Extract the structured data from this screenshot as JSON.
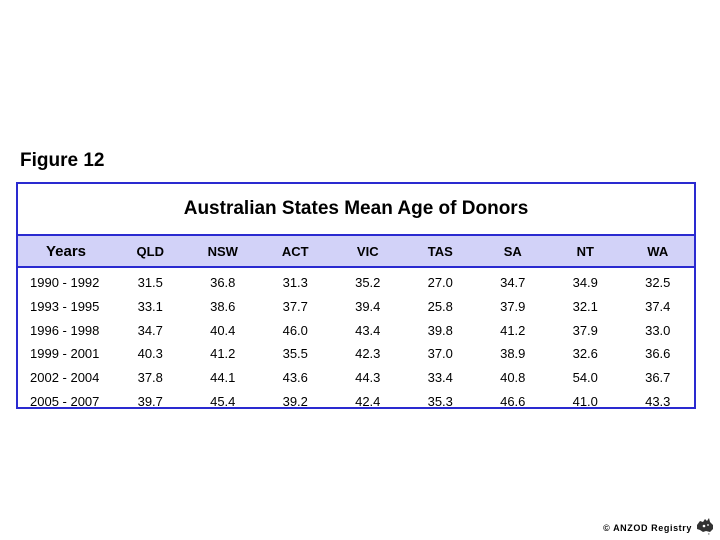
{
  "figure_label": "Figure 12",
  "table": {
    "title": "Australian States Mean Age of Donors",
    "columns": [
      "Years",
      "QLD",
      "NSW",
      "ACT",
      "VIC",
      "TAS",
      "SA",
      "NT",
      "WA"
    ],
    "rows": [
      [
        "1990 - 1992",
        "31.5",
        "36.8",
        "31.3",
        "35.2",
        "27.0",
        "34.7",
        "34.9",
        "32.5"
      ],
      [
        "1993 - 1995",
        "33.1",
        "38.6",
        "37.7",
        "39.4",
        "25.8",
        "37.9",
        "32.1",
        "37.4"
      ],
      [
        "1996 - 1998",
        "34.7",
        "40.4",
        "46.0",
        "43.4",
        "39.8",
        "41.2",
        "37.9",
        "33.0"
      ],
      [
        "1999 - 2001",
        "40.3",
        "41.2",
        "35.5",
        "42.3",
        "37.0",
        "38.9",
        "32.6",
        "36.6"
      ],
      [
        "2002 - 2004",
        "37.8",
        "44.1",
        "43.6",
        "44.3",
        "33.4",
        "40.8",
        "54.0",
        "36.7"
      ],
      [
        "2005 - 2007",
        "39.7",
        "45.4",
        "39.2",
        "42.4",
        "35.3",
        "46.6",
        "41.0",
        "43.3"
      ]
    ]
  },
  "footer": {
    "copyright": "© ANZOD Registry",
    "logo_icon": "australia-map-icon"
  },
  "colors": {
    "border": "#2a2ad0",
    "header_bg": "#d2d2f8"
  }
}
